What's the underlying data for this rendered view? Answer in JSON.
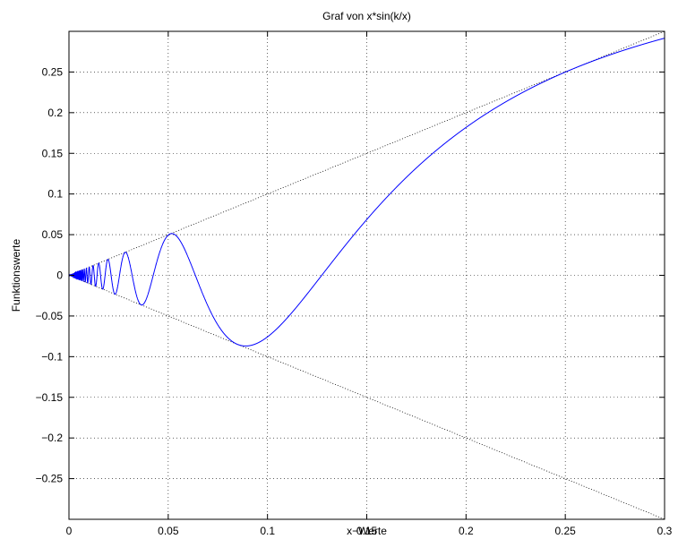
{
  "chart_data": {
    "type": "line",
    "title": "Graf von x*sin(k/x)",
    "xlabel": "x−Werte",
    "ylabel": "Funktionswerte",
    "xlim": [
      0,
      0.3
    ],
    "ylim": [
      -0.3,
      0.3
    ],
    "grid": true,
    "x_ticks": [
      0,
      0.05,
      0.1,
      0.15,
      0.2,
      0.25,
      0.3
    ],
    "x_tick_labels": [
      "0",
      "0.05",
      "0.1",
      "0.15",
      "0.2",
      "0.25",
      "0.3"
    ],
    "y_ticks": [
      0.25,
      0.2,
      0.15,
      0.1,
      0.05,
      0,
      -0.05,
      -0.1,
      -0.15,
      -0.2,
      -0.25
    ],
    "y_tick_labels": [
      "0.25",
      "0.2",
      "0.15",
      "0.1",
      "0.05",
      "0",
      "−0.05",
      "−0.1",
      "−0.15",
      "−0.2",
      "−0.25"
    ],
    "function": {
      "expression": "x*sin(k/x)",
      "k": 0.4,
      "x_range": [
        0,
        0.3
      ],
      "color": "#0000ff"
    },
    "envelopes": [
      {
        "expression": "x",
        "x_range": [
          0,
          0.3
        ],
        "style": "dotted",
        "color": "#000000"
      },
      {
        "expression": "-x",
        "x_range": [
          0,
          0.3
        ],
        "style": "dotted",
        "color": "#000000"
      }
    ]
  }
}
